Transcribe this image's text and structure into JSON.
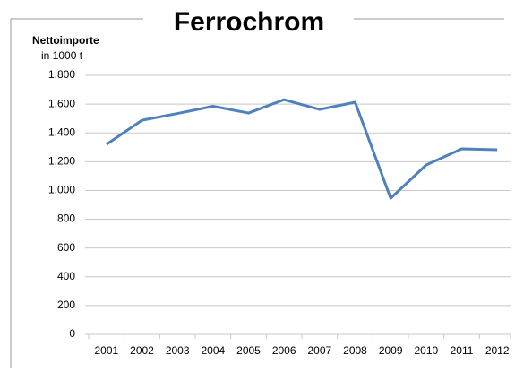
{
  "chart_data": {
    "type": "line",
    "title": "Ferrochrom",
    "y_label": "Nettoimporte",
    "y_unit": "in 1000 t",
    "categories": [
      "2001",
      "2002",
      "2003",
      "2004",
      "2005",
      "2006",
      "2007",
      "2008",
      "2009",
      "2010",
      "2011",
      "2012"
    ],
    "series": [
      {
        "name": "Ferrochrom",
        "color": "#4f81bd",
        "values": [
          1320,
          1488,
          1535,
          1585,
          1538,
          1631,
          1563,
          1613,
          946,
          1177,
          1289,
          1283
        ]
      }
    ],
    "ylim": [
      0,
      1800
    ],
    "yticks": [
      0,
      200,
      400,
      600,
      800,
      {
        "value": 1000,
        "label": "1.000"
      },
      {
        "value": 1200,
        "label": "1.200"
      },
      {
        "value": 1400,
        "label": "1.400"
      },
      {
        "value": 1600,
        "label": "1.600"
      },
      {
        "value": 1800,
        "label": "1.800"
      }
    ],
    "grid": true
  }
}
